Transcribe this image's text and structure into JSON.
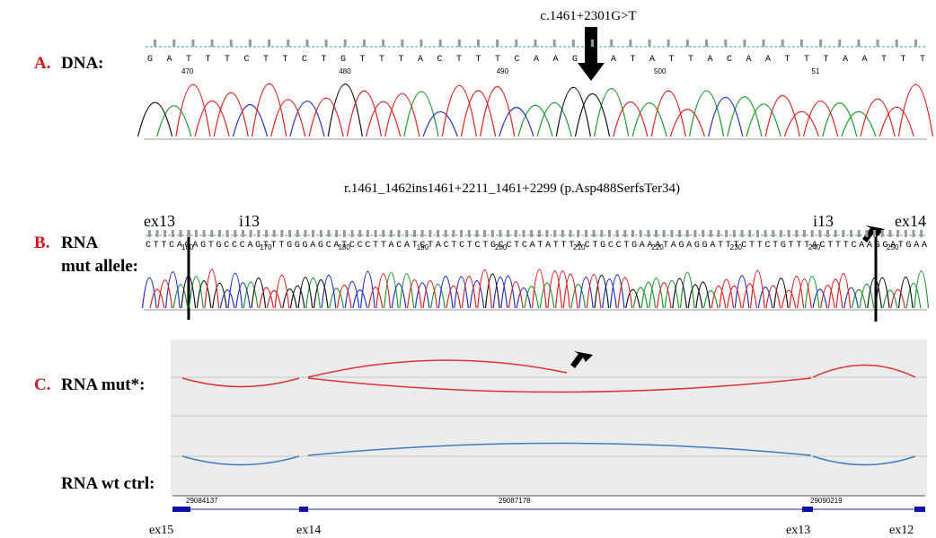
{
  "panels": [
    {
      "letter": "A.",
      "label": "DNA:",
      "variant": "c.1461+2301G>T",
      "sequence": "GATTTCTTCTGTTTACTTTCAAGGATATTACAATTTAATTT",
      "positions": [
        "470",
        "480",
        "490",
        "500",
        "51"
      ]
    },
    {
      "letter": "B.",
      "label": "RNA",
      "label2": "mut allele:",
      "variant": "r.1461_1462ins1461+2211_1461+2299 (p.Asp488SerfsTer34)",
      "sequence": "CTTCAGAGTGCCCAGTTTGGGAGCATCCCTTACATCTACTCTCTGCCTCATATTTACTGCCTGAAATAGAGGATTTCTTCTGTTTACTTTCAAGGATGAA",
      "positions": [
        "160",
        "170",
        "180",
        "190",
        "200",
        "210",
        "220",
        "230",
        "240",
        "250"
      ],
      "features": [
        "ex13",
        "i13",
        "i13",
        "ex14"
      ]
    },
    {
      "letter": "C.",
      "label": "RNA mut*:",
      "label2": "RNA wt ctrl:",
      "coordinates": [
        "29084137",
        "29087178",
        "29090219"
      ],
      "exons": [
        "ex15",
        "ex14",
        "ex13",
        "ex12"
      ]
    }
  ]
}
